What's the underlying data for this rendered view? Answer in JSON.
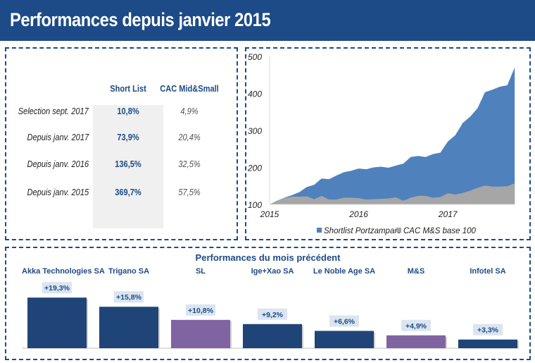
{
  "header": {
    "title": "Performances depuis janvier 2015"
  },
  "table": {
    "columns": [
      "Short List",
      "CAC Mid&Small"
    ],
    "rows": [
      {
        "label": "Selection sept. 2017",
        "short_list": "10,8%",
        "cac": "4,9%"
      },
      {
        "label": "Depuis janv. 2017",
        "short_list": "73,9%",
        "cac": "20,4%"
      },
      {
        "label": "Depuis janv. 2016",
        "short_list": "136,5%",
        "cac": "32,5%"
      },
      {
        "label": "Depuis janv. 2015",
        "short_list": "369,7%",
        "cac": "57,5%"
      }
    ]
  },
  "chart_data": [
    {
      "type": "area",
      "x_ticks": [
        "2015",
        "2016",
        "2017"
      ],
      "y_ticks": [
        "100",
        "200",
        "300",
        "400",
        "500"
      ],
      "ylim": [
        100,
        500
      ],
      "x_start": "2015-01",
      "x_step": "month",
      "legend_position": "bottom",
      "series": [
        {
          "name": "Shortlist Portzamparc",
          "color": "#4f81bd",
          "values": [
            100,
            110,
            118,
            125,
            133,
            147,
            153,
            170,
            168,
            178,
            187,
            191,
            197,
            195,
            200,
            202,
            199,
            205,
            210,
            228,
            231,
            228,
            236,
            240,
            270,
            287,
            320,
            337,
            360,
            403,
            410,
            418,
            422,
            470
          ]
        },
        {
          "name": "CAC M&S base 100",
          "color": "#a6a6a6",
          "values": [
            100,
            110,
            117,
            121,
            121,
            122,
            114,
            123,
            113,
            113,
            118,
            118,
            117,
            113,
            114,
            115,
            116,
            119,
            110,
            118,
            123,
            123,
            118,
            120,
            130,
            127,
            131,
            137,
            145,
            151,
            148,
            148,
            149,
            157
          ]
        }
      ]
    },
    {
      "type": "bar",
      "title": "Performances du mois précédent",
      "categories": [
        "Akka Technologies SA",
        "Trigano SA",
        "SL",
        "Ige+Xao SA",
        "Le Noble Age SA",
        "M&S",
        "Infotel SA"
      ],
      "values": [
        19.3,
        15.8,
        10.8,
        9.2,
        6.6,
        4.9,
        3.3
      ],
      "labels": [
        "+19,3%",
        "+15,8%",
        "+10,8%",
        "+9,2%",
        "+6,6%",
        "+4,9%",
        "+3,3%"
      ],
      "colors": [
        "#1f4477",
        "#1f4477",
        "#8064a2",
        "#1f4477",
        "#1f4477",
        "#8064a2",
        "#1f4477"
      ],
      "label_bg": "#dbe5f1"
    }
  ]
}
